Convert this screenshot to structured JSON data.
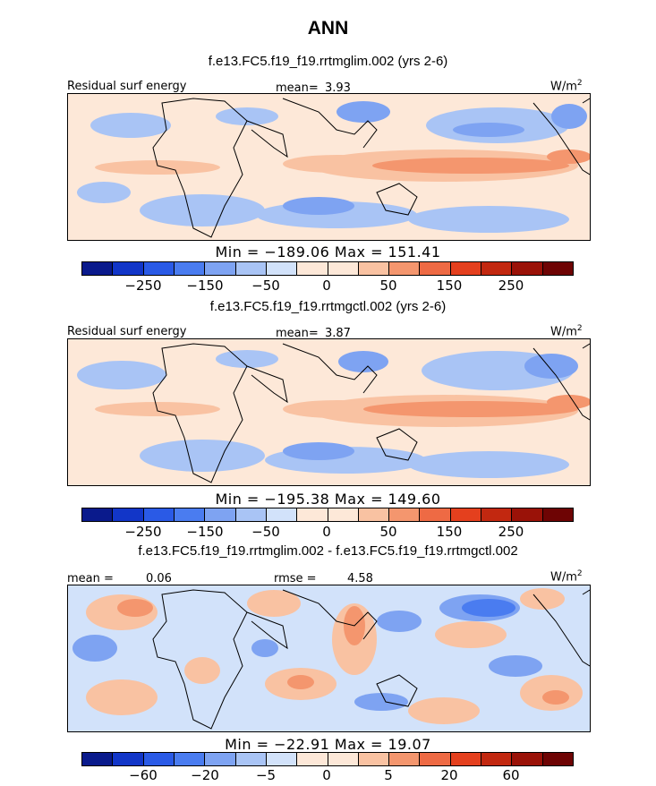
{
  "figure": {
    "title": "ANN",
    "colors": {
      "scale": [
        "#0a1a8c",
        "#1236c8",
        "#2a5ae6",
        "#4a7cf0",
        "#7ea3f2",
        "#a9c4f5",
        "#d2e2fa",
        "#fde8d8",
        "#f9c2a2",
        "#f4966e",
        "#ee6a44",
        "#e4401e",
        "#c22810",
        "#9a1208",
        "#6e0404"
      ]
    }
  },
  "panels": [
    {
      "case_title": "f.e13.FC5.f19_f19.rrtmglim.002 (yrs 2-6)",
      "variable_label": "Residual surf energy",
      "stat_label": "mean=",
      "stat_value": "3.93",
      "units_base": "W/m",
      "units_exp": "2",
      "min_max": "Min = −189.06 Max = 151.41",
      "colorbar_ticks": [
        "−250",
        "−150",
        "−50",
        "0",
        "50",
        "150",
        "250"
      ]
    },
    {
      "case_title": "f.e13.FC5.f19_f19.rrtmgctl.002 (yrs 2-6)",
      "variable_label": "Residual surf energy",
      "stat_label": "mean=",
      "stat_value": "3.87",
      "units_base": "W/m",
      "units_exp": "2",
      "min_max": "Min = −195.38 Max = 149.60",
      "colorbar_ticks": [
        "−250",
        "−150",
        "−50",
        "0",
        "50",
        "150",
        "250"
      ]
    },
    {
      "case_title": "f.e13.FC5.f19_f19.rrtmglim.002 - f.e13.FC5.f19_f19.rrtmgctl.002",
      "stat_label": "mean =",
      "stat_value": "0.06",
      "stat2_label": "rmse =",
      "stat2_value": "4.58",
      "units_base": "W/m",
      "units_exp": "2",
      "min_max": "Min = −22.91 Max = 19.07",
      "colorbar_ticks": [
        "−60",
        "−20",
        "−5",
        "0",
        "5",
        "20",
        "60"
      ]
    }
  ]
}
